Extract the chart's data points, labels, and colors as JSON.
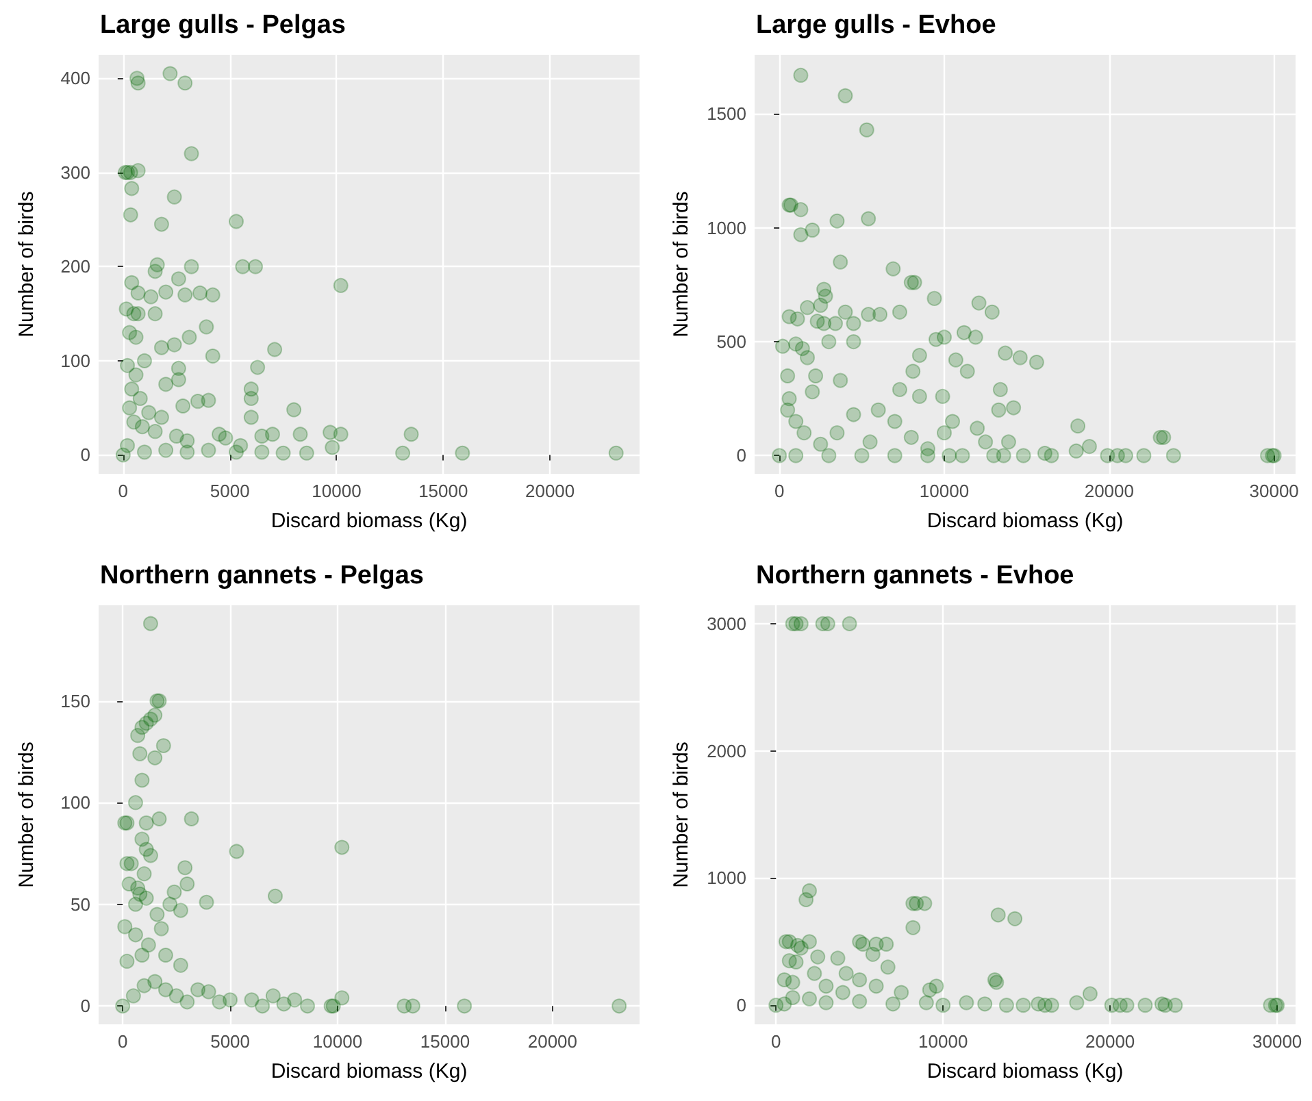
{
  "chart_data": [
    {
      "type": "scatter",
      "title": "Large gulls - Pelgas",
      "xlabel": "Discard biomass (Kg)",
      "ylabel": "Number of birds",
      "color": "#006400",
      "marker": "circle",
      "grid": true,
      "xlim": [
        -1150,
        24200
      ],
      "ylim": [
        -20,
        425
      ],
      "xticks": [
        0,
        5000,
        10000,
        15000,
        20000
      ],
      "yticks": [
        0,
        100,
        200,
        300,
        400
      ],
      "x": [
        650,
        700,
        2200,
        2900,
        3200,
        100,
        200,
        350,
        700,
        400,
        2400,
        350,
        1800,
        5300,
        5600,
        6200,
        3200,
        1600,
        1500,
        400,
        2600,
        700,
        2000,
        1300,
        2900,
        3600,
        4200,
        10200,
        150,
        500,
        700,
        1500,
        3900,
        300,
        600,
        3100,
        2400,
        1800,
        7100,
        4200,
        6300,
        2600,
        2600,
        6000,
        6000,
        3500,
        4000,
        6000,
        8000,
        2000,
        1000,
        200,
        600,
        400,
        800,
        300,
        1200,
        500,
        900,
        1500,
        2500,
        3000,
        4500,
        5500,
        6500,
        7000,
        8300,
        9700,
        10200,
        9800,
        8600,
        7500,
        6500,
        5300,
        4000,
        3000,
        2000,
        1000,
        0,
        200,
        13100,
        13500,
        15900,
        23100,
        4800,
        1800,
        2800
      ],
      "values": [
        400,
        395,
        405,
        395,
        320,
        300,
        300,
        300,
        302,
        283,
        274,
        255,
        245,
        248,
        200,
        200,
        200,
        202,
        195,
        183,
        187,
        172,
        173,
        168,
        170,
        172,
        170,
        180,
        155,
        150,
        150,
        150,
        136,
        130,
        125,
        125,
        117,
        114,
        112,
        105,
        93,
        92,
        80,
        70,
        60,
        57,
        58,
        40,
        48,
        75,
        100,
        95,
        85,
        70,
        60,
        50,
        45,
        35,
        30,
        25,
        20,
        15,
        22,
        10,
        20,
        22,
        22,
        24,
        22,
        8,
        2,
        2,
        3,
        3,
        5,
        3,
        5,
        3,
        0,
        10,
        2,
        22,
        2,
        2,
        18,
        40,
        52
      ]
    },
    {
      "type": "scatter",
      "title": "Large gulls - Evhoe",
      "xlabel": "Discard biomass (Kg)",
      "ylabel": "Number of birds",
      "color": "#006400",
      "marker": "circle",
      "grid": true,
      "xlim": [
        -1500,
        31300
      ],
      "ylim": [
        -80,
        1760
      ],
      "xticks": [
        0,
        10000,
        20000,
        30000
      ],
      "yticks": [
        0,
        500,
        1000,
        1500
      ],
      "x": [
        1300,
        4000,
        5300,
        600,
        700,
        1300,
        1300,
        2000,
        3500,
        5400,
        3700,
        6900,
        8000,
        8200,
        9400,
        12100,
        12900,
        2700,
        2800,
        2500,
        1700,
        4000,
        5400,
        6100,
        7300,
        600,
        1100,
        2300,
        2700,
        3400,
        4500,
        200,
        1000,
        1400,
        3000,
        4500,
        9500,
        10000,
        11200,
        11900,
        13700,
        14600,
        15600,
        10700,
        11400,
        8100,
        8500,
        3700,
        2200,
        500,
        1700,
        7300,
        8500,
        9900,
        13400,
        13300,
        14200,
        12000,
        18100,
        23100,
        23300,
        13900,
        12500,
        18800,
        18000,
        14800,
        16100,
        16500,
        19900,
        20500,
        21000,
        22100,
        23900,
        29600,
        29900,
        30000,
        13000,
        13600,
        11100,
        10300,
        9000,
        7000,
        5000,
        3000,
        1000,
        0,
        500,
        1000,
        1500,
        2500,
        3500,
        4500,
        6000,
        7000,
        8000,
        9000,
        600,
        2000,
        5500,
        10000,
        10500
      ],
      "values": [
        1670,
        1580,
        1430,
        1100,
        1100,
        1080,
        970,
        990,
        1030,
        1040,
        850,
        820,
        760,
        760,
        690,
        670,
        630,
        730,
        700,
        660,
        650,
        630,
        620,
        620,
        630,
        610,
        600,
        590,
        580,
        580,
        580,
        480,
        490,
        470,
        500,
        500,
        510,
        520,
        540,
        520,
        450,
        430,
        410,
        420,
        370,
        370,
        440,
        330,
        350,
        350,
        430,
        290,
        260,
        260,
        290,
        200,
        210,
        120,
        130,
        80,
        80,
        60,
        60,
        40,
        20,
        0,
        10,
        0,
        0,
        0,
        0,
        0,
        0,
        0,
        0,
        0,
        0,
        0,
        0,
        0,
        0,
        0,
        0,
        0,
        0,
        0,
        200,
        150,
        100,
        50,
        100,
        180,
        200,
        150,
        80,
        30,
        250,
        280,
        60,
        100,
        150
      ]
    },
    {
      "type": "scatter",
      "title": "Northern gannets - Pelgas",
      "xlabel": "Discard biomass (Kg)",
      "ylabel": "Number of birds",
      "color": "#006400",
      "marker": "circle",
      "grid": true,
      "xlim": [
        -1120,
        24050
      ],
      "ylim": [
        -9,
        197
      ],
      "xticks": [
        0,
        5000,
        10000,
        15000,
        20000
      ],
      "yticks": [
        0,
        50,
        100,
        150
      ],
      "x": [
        1300,
        1600,
        1700,
        1500,
        1300,
        1100,
        900,
        700,
        1900,
        800,
        1500,
        900,
        600,
        100,
        200,
        1100,
        1700,
        3200,
        900,
        1100,
        1300,
        5300,
        10200,
        200,
        1000,
        400,
        2900,
        3000,
        300,
        700,
        800,
        600,
        1100,
        2400,
        2200,
        2700,
        3900,
        7100,
        1600,
        1800,
        100,
        600,
        1200,
        900,
        2000,
        2700,
        200,
        3500,
        4000,
        5000,
        6000,
        7000,
        8000,
        8600,
        9700,
        9800,
        10200,
        13100,
        13500,
        15900,
        23100,
        0,
        500,
        1000,
        1500,
        2000,
        2500,
        3000,
        4500,
        6500,
        7500
      ],
      "values": [
        188,
        150,
        150,
        143,
        141,
        139,
        137,
        133,
        128,
        124,
        122,
        111,
        100,
        90,
        90,
        90,
        92,
        92,
        82,
        77,
        74,
        76,
        78,
        70,
        65,
        70,
        68,
        60,
        60,
        58,
        55,
        50,
        53,
        56,
        50,
        47,
        51,
        54,
        45,
        38,
        39,
        35,
        30,
        25,
        25,
        20,
        22,
        8,
        7,
        3,
        3,
        5,
        3,
        0,
        0,
        0,
        4,
        0,
        0,
        0,
        0,
        0,
        5,
        10,
        12,
        8,
        5,
        2,
        2,
        0,
        1
      ]
    },
    {
      "type": "scatter",
      "title": "Northern gannets - Evhoe",
      "xlabel": "Discard biomass (Kg)",
      "ylabel": "Number of birds",
      "color": "#006400",
      "marker": "circle",
      "grid": true,
      "xlim": [
        -1280,
        31100
      ],
      "ylim": [
        -150,
        3145
      ],
      "xticks": [
        0,
        10000,
        20000,
        30000
      ],
      "yticks": [
        0,
        1000,
        2000,
        3000
      ],
      "x": [
        1000,
        1200,
        1500,
        2800,
        3100,
        4400,
        1800,
        2000,
        8200,
        8400,
        8900,
        8200,
        13300,
        14300,
        600,
        800,
        1300,
        1500,
        2000,
        5000,
        5200,
        6000,
        6600,
        5800,
        3700,
        2500,
        800,
        1200,
        2300,
        4200,
        6700,
        13100,
        13200,
        9600,
        9200,
        5000,
        6000,
        7500,
        500,
        1000,
        3000,
        4000,
        18800,
        18000,
        16500,
        16100,
        14800,
        15700,
        11400,
        12500,
        13800,
        20100,
        20600,
        21000,
        22100,
        23100,
        23300,
        23900,
        29600,
        29900,
        30000,
        0,
        2000,
        3000,
        5000,
        7000,
        9000,
        10000,
        1000,
        500
      ],
      "values": [
        3000,
        3000,
        3000,
        3000,
        3000,
        3000,
        830,
        900,
        800,
        800,
        800,
        610,
        710,
        680,
        500,
        500,
        470,
        450,
        500,
        500,
        480,
        480,
        480,
        400,
        370,
        380,
        350,
        340,
        250,
        250,
        300,
        200,
        180,
        150,
        120,
        200,
        150,
        100,
        200,
        180,
        150,
        100,
        90,
        20,
        0,
        0,
        0,
        10,
        20,
        10,
        0,
        0,
        0,
        0,
        0,
        10,
        0,
        0,
        0,
        0,
        0,
        0,
        50,
        20,
        30,
        10,
        20,
        0,
        60,
        10
      ]
    }
  ]
}
